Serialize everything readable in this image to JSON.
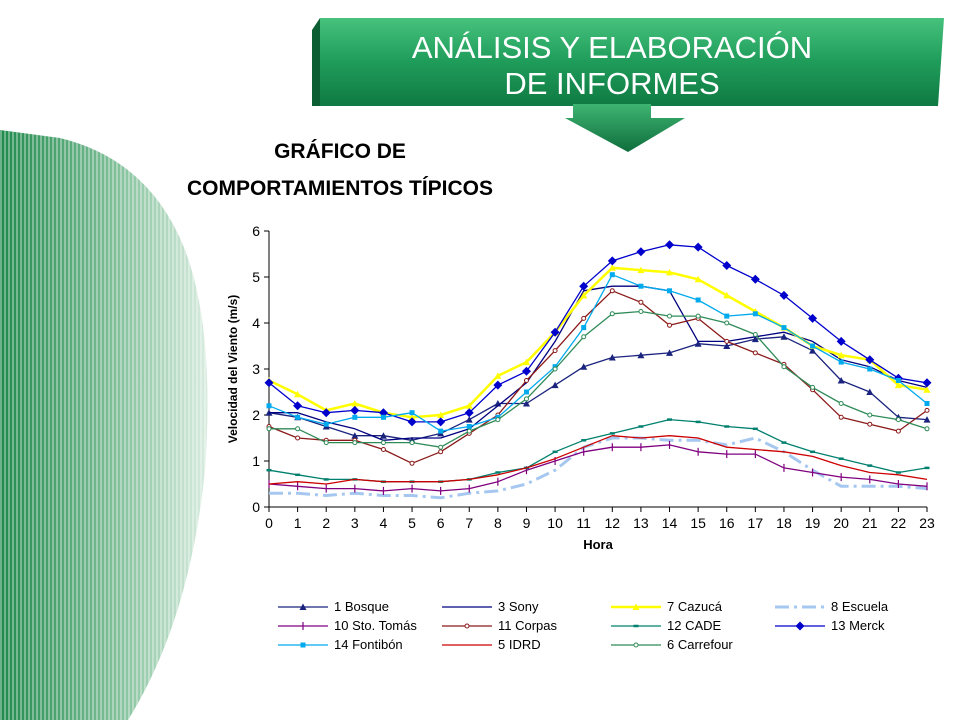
{
  "banner": {
    "line1": "ANÁLISIS Y ELABORACIÓN",
    "line2": "DE INFORMES",
    "color": "#1f9c5a"
  },
  "heading": {
    "line1": "GRÁFICO DE",
    "line2": "COMPORTAMIENTOS TÍPICOS"
  },
  "chart_data": {
    "type": "line",
    "xlabel": "Hora",
    "ylabel": "Velocidad del Viento (m/s)",
    "xlim": [
      0,
      23
    ],
    "ylim": [
      0,
      6
    ],
    "x": [
      0,
      1,
      2,
      3,
      4,
      5,
      6,
      7,
      8,
      9,
      10,
      11,
      12,
      13,
      14,
      15,
      16,
      17,
      18,
      19,
      20,
      21,
      22,
      23
    ],
    "yticks": [
      0,
      1,
      2,
      3,
      4,
      5,
      6
    ],
    "grid": false,
    "legend_position": "bottom",
    "series": [
      {
        "name": "1 Bosque",
        "color": "#1a237e",
        "style": "solid",
        "marker": "triangle",
        "values": [
          2.05,
          1.95,
          1.75,
          1.55,
          1.55,
          1.45,
          1.6,
          1.9,
          2.25,
          2.25,
          2.65,
          3.05,
          3.25,
          3.3,
          3.35,
          3.55,
          3.5,
          3.65,
          3.7,
          3.4,
          2.75,
          2.5,
          1.95,
          1.9
        ]
      },
      {
        "name": "3 Sony",
        "color": "#000080",
        "style": "solid",
        "marker": "none",
        "values": [
          2.05,
          2.05,
          1.85,
          1.7,
          1.45,
          1.5,
          1.5,
          1.7,
          2.2,
          2.7,
          3.6,
          4.7,
          4.8,
          4.8,
          4.7,
          3.6,
          3.6,
          3.7,
          3.8,
          3.6,
          3.2,
          3.05,
          2.75,
          2.6
        ]
      },
      {
        "name": "7 Cazucá",
        "color": "#ffff00",
        "style": "solid",
        "marker": "triangle",
        "values": [
          2.75,
          2.45,
          2.1,
          2.25,
          2.05,
          1.95,
          2.0,
          2.2,
          2.85,
          3.15,
          3.8,
          4.6,
          5.2,
          5.15,
          5.1,
          4.95,
          4.6,
          4.25,
          3.9,
          3.5,
          3.3,
          3.2,
          2.65,
          2.55
        ]
      },
      {
        "name": "8 Escuela",
        "color": "#a6c8f0",
        "style": "dashdot",
        "marker": "none",
        "values": [
          0.3,
          0.3,
          0.25,
          0.3,
          0.25,
          0.25,
          0.2,
          0.3,
          0.35,
          0.5,
          0.8,
          1.3,
          1.5,
          1.5,
          1.45,
          1.45,
          1.35,
          1.5,
          1.2,
          0.8,
          0.45,
          0.45,
          0.45,
          0.4
        ]
      },
      {
        "name": "10 Sto. Tomás",
        "color": "#800080",
        "style": "solid",
        "marker": "plus",
        "values": [
          0.5,
          0.45,
          0.4,
          0.4,
          0.35,
          0.4,
          0.35,
          0.4,
          0.55,
          0.8,
          1.0,
          1.2,
          1.3,
          1.3,
          1.35,
          1.2,
          1.15,
          1.15,
          0.85,
          0.75,
          0.65,
          0.6,
          0.5,
          0.45
        ]
      },
      {
        "name": "11 Corpas",
        "color": "#8b1a1a",
        "style": "solid",
        "marker": "circle",
        "values": [
          1.75,
          1.5,
          1.45,
          1.45,
          1.25,
          0.95,
          1.2,
          1.6,
          2.0,
          2.75,
          3.4,
          4.1,
          4.7,
          4.45,
          3.95,
          4.1,
          3.6,
          3.35,
          3.1,
          2.55,
          1.95,
          1.8,
          1.65,
          2.1
        ]
      },
      {
        "name": "12 CADE",
        "color": "#00806e",
        "style": "solid",
        "marker": "dash",
        "values": [
          0.8,
          0.7,
          0.6,
          0.6,
          0.55,
          0.55,
          0.55,
          0.6,
          0.75,
          0.85,
          1.2,
          1.45,
          1.6,
          1.75,
          1.9,
          1.85,
          1.75,
          1.7,
          1.4,
          1.2,
          1.05,
          0.9,
          0.75,
          0.85
        ]
      },
      {
        "name": "13 Merck",
        "color": "#0000cc",
        "style": "solid",
        "marker": "diamond",
        "values": [
          2.7,
          2.2,
          2.05,
          2.1,
          2.05,
          1.85,
          1.85,
          2.05,
          2.65,
          2.95,
          3.8,
          4.8,
          5.35,
          5.55,
          5.7,
          5.65,
          5.25,
          4.95,
          4.6,
          4.1,
          3.6,
          3.2,
          2.8,
          2.7
        ]
      },
      {
        "name": "14 Fontibón",
        "color": "#00aaee",
        "style": "solid",
        "marker": "square",
        "values": [
          2.2,
          1.95,
          1.8,
          1.95,
          1.95,
          2.05,
          1.65,
          1.75,
          1.95,
          2.5,
          3.05,
          3.9,
          5.05,
          4.8,
          4.7,
          4.5,
          4.15,
          4.2,
          3.9,
          3.5,
          3.15,
          3.0,
          2.75,
          2.25
        ]
      },
      {
        "name": "5 IDRD",
        "color": "#cc0000",
        "style": "solid",
        "marker": "none",
        "values": [
          0.5,
          0.55,
          0.5,
          0.6,
          0.55,
          0.55,
          0.55,
          0.6,
          0.7,
          0.85,
          1.05,
          1.3,
          1.55,
          1.5,
          1.55,
          1.5,
          1.3,
          1.25,
          1.2,
          1.1,
          0.9,
          0.75,
          0.7,
          0.6
        ]
      },
      {
        "name": "6 Carrefour",
        "color": "#2e8b57",
        "style": "solid",
        "marker": "circle",
        "values": [
          1.7,
          1.7,
          1.4,
          1.4,
          1.4,
          1.4,
          1.3,
          1.65,
          1.9,
          2.35,
          3.0,
          3.7,
          4.2,
          4.25,
          4.15,
          4.15,
          4.0,
          3.75,
          3.05,
          2.6,
          2.25,
          2.0,
          1.9,
          1.7
        ]
      }
    ]
  }
}
